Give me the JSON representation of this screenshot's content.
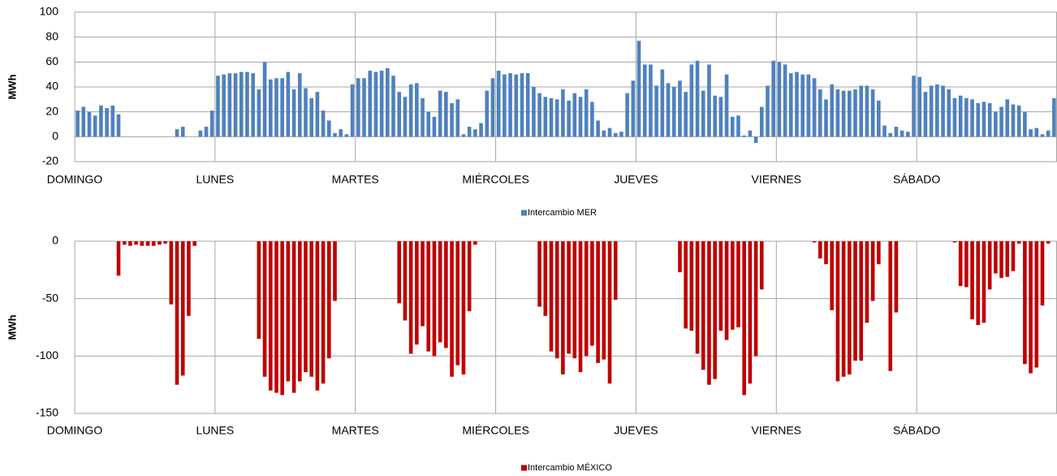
{
  "chart_data": [
    {
      "type": "bar",
      "y_label": "MWh",
      "categories": [
        "DOMINGO",
        null,
        null,
        null,
        null,
        null,
        null,
        null,
        null,
        null,
        null,
        null,
        null,
        null,
        null,
        null,
        null,
        null,
        null,
        null,
        null,
        null,
        null,
        null,
        "LUNES",
        null,
        null,
        null,
        null,
        null,
        null,
        null,
        null,
        null,
        null,
        null,
        null,
        null,
        null,
        null,
        null,
        null,
        null,
        null,
        null,
        null,
        null,
        null,
        "MARTES",
        null,
        null,
        null,
        null,
        null,
        null,
        null,
        null,
        null,
        null,
        null,
        null,
        null,
        null,
        null,
        null,
        null,
        null,
        null,
        null,
        null,
        null,
        null,
        "MIÉRCOLES",
        null,
        null,
        null,
        null,
        null,
        null,
        null,
        null,
        null,
        null,
        null,
        null,
        null,
        null,
        null,
        null,
        null,
        null,
        null,
        null,
        null,
        null,
        null,
        "JUEVES",
        null,
        null,
        null,
        null,
        null,
        null,
        null,
        null,
        null,
        null,
        null,
        null,
        null,
        null,
        null,
        null,
        null,
        null,
        null,
        null,
        null,
        null,
        null,
        "VIERNES",
        null,
        null,
        null,
        null,
        null,
        null,
        null,
        null,
        null,
        null,
        null,
        null,
        null,
        null,
        null,
        null,
        null,
        null,
        null,
        null,
        null,
        null,
        null,
        "SÁBADO",
        null,
        null,
        null,
        null,
        null,
        null,
        null,
        null,
        null,
        null,
        null,
        null,
        null,
        null,
        null,
        null,
        null,
        null,
        null,
        null,
        null,
        null,
        null
      ],
      "series": [
        {
          "name": "Intercambio MER",
          "color": "#4f81bd",
          "values": [
            21,
            24,
            20,
            17,
            25,
            23,
            25,
            18,
            0,
            0,
            0,
            0,
            0,
            0,
            0,
            0,
            0,
            6,
            8,
            0,
            0,
            5,
            8,
            21,
            49,
            50,
            51,
            51,
            52,
            52,
            51,
            38,
            60,
            46,
            47,
            47,
            52,
            38,
            51,
            39,
            31,
            36,
            21,
            13,
            3,
            6,
            2,
            42,
            47,
            47,
            53,
            52,
            53,
            55,
            49,
            36,
            32,
            42,
            43,
            31,
            20,
            16,
            37,
            36,
            27,
            30,
            2,
            8,
            6,
            11,
            37,
            47,
            53,
            50,
            51,
            50,
            51,
            51,
            40,
            35,
            32,
            31,
            30,
            38,
            29,
            35,
            32,
            38,
            28,
            13,
            5,
            7,
            3,
            4,
            35,
            45,
            77,
            58,
            58,
            41,
            54,
            43,
            40,
            45,
            36,
            58,
            61,
            37,
            58,
            33,
            32,
            50,
            16,
            17,
            1,
            5,
            -5,
            24,
            41,
            61,
            60,
            58,
            51,
            52,
            50,
            50,
            47,
            38,
            30,
            42,
            38,
            37,
            37,
            38,
            41,
            41,
            38,
            29,
            9,
            3,
            8,
            5,
            4,
            49,
            48,
            36,
            41,
            42,
            41,
            38,
            31,
            33,
            31,
            30,
            27,
            28,
            27,
            20,
            24,
            30,
            26,
            25,
            20,
            6,
            7,
            2,
            5,
            31
          ]
        }
      ],
      "ylim": [
        -20,
        100
      ],
      "yticks": [
        -20,
        0,
        20,
        40,
        60,
        80,
        100
      ],
      "grid": true
    },
    {
      "type": "bar",
      "y_label": "MWh",
      "categories": [
        "DOMINGO",
        null,
        null,
        null,
        null,
        null,
        null,
        null,
        null,
        null,
        null,
        null,
        null,
        null,
        null,
        null,
        null,
        null,
        null,
        null,
        null,
        null,
        null,
        null,
        "LUNES",
        null,
        null,
        null,
        null,
        null,
        null,
        null,
        null,
        null,
        null,
        null,
        null,
        null,
        null,
        null,
        null,
        null,
        null,
        null,
        null,
        null,
        null,
        null,
        "MARTES",
        null,
        null,
        null,
        null,
        null,
        null,
        null,
        null,
        null,
        null,
        null,
        null,
        null,
        null,
        null,
        null,
        null,
        null,
        null,
        null,
        null,
        null,
        null,
        "MIÉRCOLES",
        null,
        null,
        null,
        null,
        null,
        null,
        null,
        null,
        null,
        null,
        null,
        null,
        null,
        null,
        null,
        null,
        null,
        null,
        null,
        null,
        null,
        null,
        null,
        "JUEVES",
        null,
        null,
        null,
        null,
        null,
        null,
        null,
        null,
        null,
        null,
        null,
        null,
        null,
        null,
        null,
        null,
        null,
        null,
        null,
        null,
        null,
        null,
        null,
        "VIERNES",
        null,
        null,
        null,
        null,
        null,
        null,
        null,
        null,
        null,
        null,
        null,
        null,
        null,
        null,
        null,
        null,
        null,
        null,
        null,
        null,
        null,
        null,
        null,
        "SÁBADO",
        null,
        null,
        null,
        null,
        null,
        null,
        null,
        null,
        null,
        null,
        null,
        null,
        null,
        null,
        null,
        null,
        null,
        null,
        null,
        null,
        null,
        null,
        null
      ],
      "series": [
        {
          "name": "Intercambio MÉXICO",
          "color": "#c00000",
          "values": [
            0,
            0,
            0,
            0,
            0,
            0,
            0,
            -30,
            -3,
            -4,
            -3,
            -4,
            -4,
            -4,
            -3,
            -2,
            -55,
            -125,
            -117,
            -65,
            -4,
            0,
            0,
            0,
            0,
            0,
            0,
            0,
            0,
            0,
            0,
            -85,
            -118,
            -130,
            -132,
            -134,
            -122,
            -132,
            -122,
            -114,
            -118,
            -130,
            -124,
            -102,
            -52,
            0,
            0,
            0,
            0,
            0,
            0,
            0,
            0,
            0,
            0,
            -54,
            -69,
            -98,
            -90,
            -74,
            -96,
            -100,
            -88,
            -93,
            -118,
            -108,
            -116,
            -61,
            -3,
            0,
            0,
            0,
            0,
            0,
            0,
            0,
            0,
            0,
            0,
            -57,
            -65,
            -96,
            -102,
            -116,
            -98,
            -102,
            -114,
            -100,
            -91,
            -106,
            -103,
            -124,
            -51,
            0,
            0,
            0,
            0,
            0,
            0,
            0,
            0,
            0,
            0,
            -27,
            -76,
            -78,
            -98,
            -112,
            -125,
            -120,
            -78,
            -86,
            -77,
            -75,
            -134,
            -124,
            -100,
            -42,
            0,
            0,
            0,
            0,
            0,
            0,
            0,
            0,
            -1,
            -15,
            -20,
            -60,
            -122,
            -118,
            -116,
            -104,
            -104,
            -71,
            -52,
            -20,
            0,
            -113,
            -62,
            0,
            0,
            0,
            0,
            0,
            0,
            0,
            0,
            0,
            -1,
            -39,
            -40,
            -68,
            -73,
            -71,
            -42,
            -28,
            -32,
            -31,
            -26,
            -2,
            -107,
            -115,
            -110,
            -56,
            -2,
            0
          ]
        }
      ],
      "ylim": [
        -150,
        0
      ],
      "yticks": [
        -150,
        -100,
        -50,
        0
      ],
      "grid": true
    }
  ]
}
